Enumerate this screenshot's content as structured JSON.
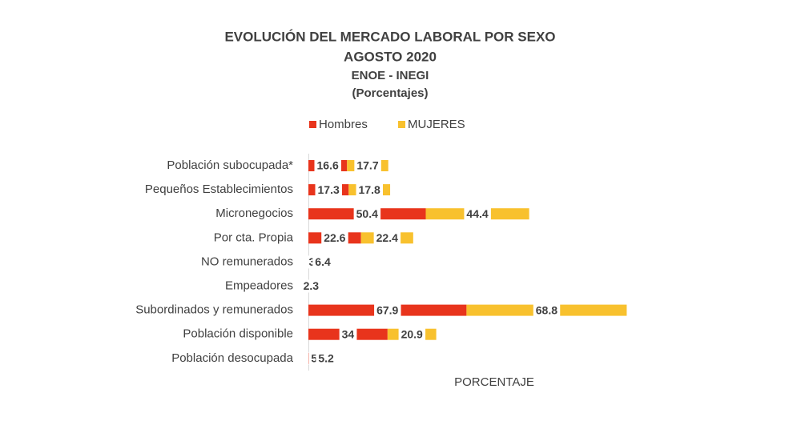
{
  "chart_data": {
    "type": "stacked-barh",
    "title": "EVOLUCIÓN DEL MERCADO LABORAL POR SEXO",
    "subtitle": "AGOSTO 2020",
    "subtitle2": "ENOE - INEGI",
    "subtitle3": "(Porcentajes)",
    "xlabel": "PORCENTAJE",
    "categories": [
      "Población subocupada*",
      "Pequeños Establecimientos",
      "Micronegocios",
      "Por cta. Propia",
      "NO remunerados",
      "Empeadores",
      "Subordinados y remunerados",
      "Población disponible",
      "Población desocupada"
    ],
    "series": [
      {
        "name": "Hombres",
        "color": "#e8341c",
        "values": [
          16.6,
          17.3,
          50.4,
          22.6,
          3,
          null,
          67.9,
          34,
          5
        ]
      },
      {
        "name": "MUJERES",
        "color": "#f8c12e",
        "values": [
          17.7,
          17.8,
          44.4,
          22.4,
          6.4,
          2.3,
          68.8,
          20.9,
          5.2
        ]
      }
    ],
    "xlim": [
      0,
      140
    ]
  }
}
